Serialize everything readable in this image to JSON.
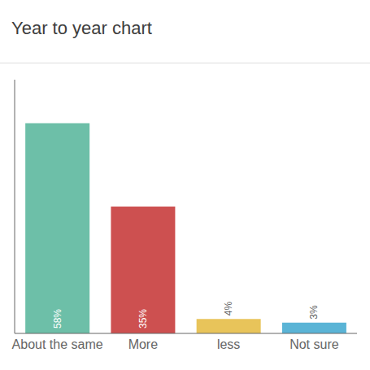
{
  "chart_data": {
    "type": "bar",
    "title": "Year to year chart",
    "categories": [
      "About the same",
      "More",
      "less",
      "Not sure"
    ],
    "values": [
      58,
      35,
      4,
      3
    ],
    "value_labels": [
      "58%",
      "35%",
      "4%",
      "3%"
    ],
    "colors": [
      "#6dbfa8",
      "#cd5050",
      "#e8c45a",
      "#5ab4d6"
    ],
    "ylim": [
      0,
      70
    ],
    "data_labels": true,
    "tick_labels": "x",
    "grid": false
  }
}
